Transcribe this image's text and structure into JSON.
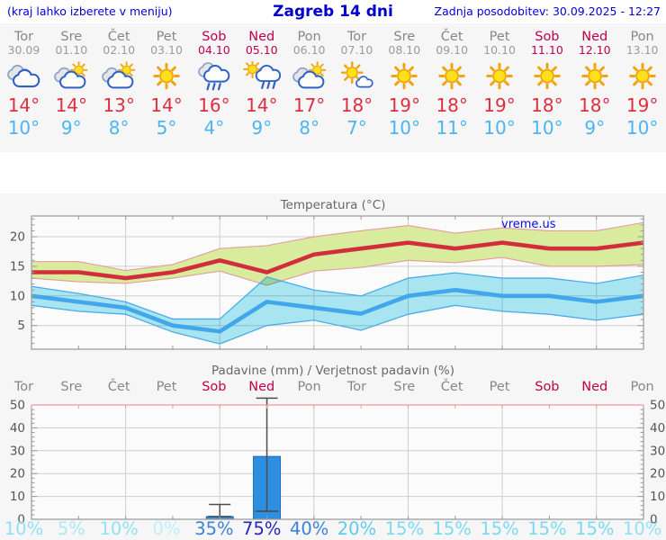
{
  "header": {
    "hint": "(kraj lahko izberete v meniju)",
    "title": "Zagreb 14 dni",
    "updated": "Zadnja posodobitev: 30.09.2025 - 12:27"
  },
  "palette": {
    "weekday_text": "#878787",
    "weekend_text": "#c0004c",
    "tmax_text": "#dd2f3f",
    "tmin_text": "#4cb4f2",
    "header_blue": "#0000d8",
    "bar_fill": "#2e8fe0",
    "bar_edge": "#1a6cc2",
    "band_warm": "#d9ec9e",
    "band_warm_edge": "#e59b9b",
    "band_cold": "#ace9f5",
    "band_cold_edge": "#4aabea",
    "line_max": "#d22d3d",
    "line_min": "#41a7ea",
    "grid": "#cfcfcf",
    "axis": "#9a9a9a",
    "axis_pink": "#ec9aa4",
    "tick_label": "#555555"
  },
  "days": [
    {
      "name": "Tor",
      "date": "30.09",
      "weekend": false,
      "icon": "cloudy",
      "tmax": "14°",
      "tmin": "10°"
    },
    {
      "name": "Sre",
      "date": "01.10",
      "weekend": false,
      "icon": "partly",
      "tmax": "14°",
      "tmin": "9°"
    },
    {
      "name": "Čet",
      "date": "02.10",
      "weekend": false,
      "icon": "partly",
      "tmax": "13°",
      "tmin": "8°"
    },
    {
      "name": "Pet",
      "date": "03.10",
      "weekend": false,
      "icon": "sunny",
      "tmax": "14°",
      "tmin": "5°"
    },
    {
      "name": "Sob",
      "date": "04.10",
      "weekend": true,
      "icon": "rain",
      "tmax": "16°",
      "tmin": "4°"
    },
    {
      "name": "Ned",
      "date": "05.10",
      "weekend": true,
      "icon": "sun-rain",
      "tmax": "14°",
      "tmin": "9°"
    },
    {
      "name": "Pon",
      "date": "06.10",
      "weekend": false,
      "icon": "partly",
      "tmax": "17°",
      "tmin": "8°"
    },
    {
      "name": "Tor",
      "date": "07.10",
      "weekend": false,
      "icon": "mostly-sunny",
      "tmax": "18°",
      "tmin": "7°"
    },
    {
      "name": "Sre",
      "date": "08.10",
      "weekend": false,
      "icon": "sunny",
      "tmax": "19°",
      "tmin": "10°"
    },
    {
      "name": "Čet",
      "date": "09.10",
      "weekend": false,
      "icon": "sunny",
      "tmax": "18°",
      "tmin": "11°"
    },
    {
      "name": "Pet",
      "date": "10.10",
      "weekend": false,
      "icon": "sunny",
      "tmax": "19°",
      "tmin": "10°"
    },
    {
      "name": "Sob",
      "date": "11.10",
      "weekend": true,
      "icon": "sunny",
      "tmax": "18°",
      "tmin": "10°"
    },
    {
      "name": "Ned",
      "date": "12.10",
      "weekend": true,
      "icon": "sunny",
      "tmax": "18°",
      "tmin": "9°"
    },
    {
      "name": "Pon",
      "date": "13.10",
      "weekend": false,
      "icon": "sunny",
      "tmax": "19°",
      "tmin": "10°"
    }
  ],
  "chart_data": [
    {
      "type": "line",
      "title": "Temperatura (°C)",
      "watermark": "vreme.us",
      "x_labels": [
        "Tor",
        "Sre",
        "Čet",
        "Pet",
        "Sob",
        "Ned",
        "Pon",
        "Tor",
        "Sre",
        "Čet",
        "Pet",
        "Sob",
        "Ned",
        "Pon"
      ],
      "ylim": [
        1,
        23.5
      ],
      "yticks": [
        5,
        10,
        15,
        20
      ],
      "grid_x_indices": [
        2,
        4,
        6,
        8,
        10,
        12
      ],
      "legend_position": "none",
      "series": [
        {
          "name": "tmax",
          "values": [
            14,
            14,
            13,
            14,
            16,
            14,
            17,
            18,
            19,
            18,
            19,
            18,
            18,
            19
          ]
        },
        {
          "name": "tmax_band_upper",
          "values": [
            15.8,
            15.8,
            14.3,
            15.3,
            18,
            18.5,
            20,
            21,
            21.9,
            20.6,
            21.5,
            21,
            21,
            22.4
          ]
        },
        {
          "name": "tmax_band_lower",
          "values": [
            13,
            12.4,
            12.1,
            13,
            14.2,
            11.8,
            14.2,
            14.8,
            16,
            15.6,
            16.5,
            15,
            15,
            15.3
          ]
        },
        {
          "name": "tmin",
          "values": [
            10,
            9,
            8,
            5,
            4,
            9,
            8,
            7,
            10,
            11,
            10,
            10,
            9,
            10
          ]
        },
        {
          "name": "tmin_band_upper",
          "values": [
            11.6,
            10.4,
            9,
            6.1,
            6.1,
            13.2,
            11,
            10,
            13,
            13.9,
            13,
            13,
            12.1,
            13.5
          ]
        },
        {
          "name": "tmin_band_lower",
          "values": [
            8.4,
            7.4,
            6.9,
            3.9,
            1.9,
            5,
            5.9,
            4.2,
            6.9,
            8.4,
            7.4,
            6.9,
            5.9,
            6.9
          ]
        }
      ]
    },
    {
      "type": "bar",
      "title": "Padavine (mm) / Verjetnost padavin (%)",
      "categories": [
        "Tor",
        "Sre",
        "Čet",
        "Pet",
        "Sob",
        "Ned",
        "Pon",
        "Tor",
        "Sre",
        "Čet",
        "Pet",
        "Sob",
        "Ned",
        "Pon"
      ],
      "values": [
        0,
        0,
        0,
        0,
        1.2,
        27.5,
        0,
        0,
        0,
        0,
        0,
        0,
        0,
        0
      ],
      "whiskers": [
        null,
        null,
        null,
        null,
        {
          "low": 1.2,
          "high": 6.5
        },
        {
          "low": 3.5,
          "high": 53
        },
        null,
        null,
        null,
        null,
        null,
        null,
        null,
        null
      ],
      "ylim": [
        0,
        50
      ],
      "yticks": [
        0,
        10,
        20,
        30,
        40,
        50
      ],
      "grid_x_indices": [
        2,
        4,
        6,
        8,
        10,
        12
      ],
      "probabilities": [
        {
          "label": "10%",
          "color": "#92e1f5"
        },
        {
          "label": "5%",
          "color": "#abe9f8"
        },
        {
          "label": "10%",
          "color": "#92e1f5"
        },
        {
          "label": "0%",
          "color": "#bfeffa"
        },
        {
          "label": "35%",
          "color": "#3b82d8"
        },
        {
          "label": "75%",
          "color": "#2526bd"
        },
        {
          "label": "40%",
          "color": "#3b82d8"
        },
        {
          "label": "20%",
          "color": "#5ccbee"
        },
        {
          "label": "15%",
          "color": "#7cd9f2"
        },
        {
          "label": "15%",
          "color": "#7cd9f2"
        },
        {
          "label": "15%",
          "color": "#7cd9f2"
        },
        {
          "label": "15%",
          "color": "#7cd9f2"
        },
        {
          "label": "15%",
          "color": "#7cd9f2"
        },
        {
          "label": "10%",
          "color": "#92e1f5"
        }
      ]
    }
  ]
}
